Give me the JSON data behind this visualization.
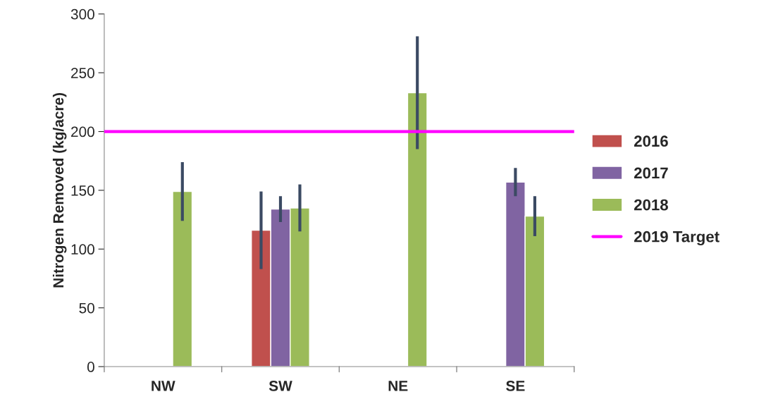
{
  "chart_data": {
    "type": "bar",
    "ylabel": "Nitrogen Removed (kg/acre)",
    "categories": [
      "NW",
      "SW",
      "NE",
      "SE"
    ],
    "series": [
      {
        "name": "2016",
        "color": "#c0504d",
        "values": [
          null,
          116,
          null,
          null
        ],
        "errors": [
          null,
          33,
          null,
          null
        ]
      },
      {
        "name": "2017",
        "color": "#8064a2",
        "values": [
          null,
          134,
          null,
          157
        ],
        "errors": [
          null,
          11,
          null,
          12
        ]
      },
      {
        "name": "2018",
        "color": "#9bbb59",
        "values": [
          149,
          135,
          233,
          128
        ],
        "errors": [
          25,
          20,
          48,
          17
        ]
      }
    ],
    "ref_lines": [
      {
        "axis": "y",
        "value": 200,
        "label": "2019 Target",
        "color": "#ff00ff"
      }
    ],
    "ylim": [
      0,
      300
    ],
    "yticks": [
      0,
      50,
      100,
      150,
      200,
      250,
      300
    ],
    "grid": false,
    "legend": "right"
  }
}
